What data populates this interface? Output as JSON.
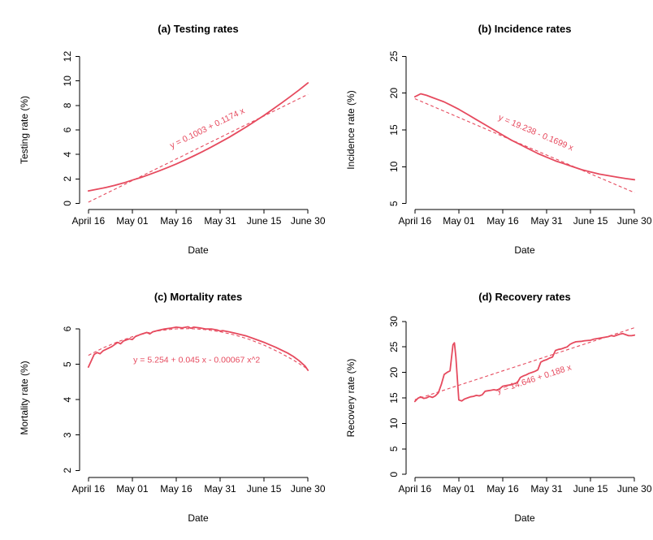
{
  "figure": {
    "background": "#ffffff",
    "accent": "#e64a5e",
    "text_color": "#000000"
  },
  "chart_data": [
    {
      "id": "a",
      "type": "line",
      "title": "(a) Testing rates",
      "xlabel": "Date",
      "ylabel": "Testing rate (%)",
      "xlim": [
        -3,
        78
      ],
      "ylim": [
        -0.5,
        12.5
      ],
      "yticks": [
        0,
        2,
        4,
        6,
        8,
        10,
        12
      ],
      "xticks": [
        {
          "pos": 0,
          "label": "April 16"
        },
        {
          "pos": 15,
          "label": "May 01"
        },
        {
          "pos": 30,
          "label": "May 16"
        },
        {
          "pos": 45,
          "label": "May 31"
        },
        {
          "pos": 60,
          "label": "June 15"
        },
        {
          "pos": 75,
          "label": "June 30"
        }
      ],
      "series": [
        {
          "name": "observed-testing-rate",
          "style": "solid",
          "points": [
            [
              0,
              1.02
            ],
            [
              3,
              1.16
            ],
            [
              6,
              1.3
            ],
            [
              9,
              1.47
            ],
            [
              12,
              1.67
            ],
            [
              15,
              1.9
            ],
            [
              18,
              2.12
            ],
            [
              21,
              2.37
            ],
            [
              24,
              2.64
            ],
            [
              27,
              2.92
            ],
            [
              30,
              3.22
            ],
            [
              33,
              3.54
            ],
            [
              36,
              3.88
            ],
            [
              39,
              4.23
            ],
            [
              42,
              4.6
            ],
            [
              45,
              4.99
            ],
            [
              48,
              5.39
            ],
            [
              51,
              5.82
            ],
            [
              54,
              6.26
            ],
            [
              57,
              6.72
            ],
            [
              60,
              7.19
            ],
            [
              63,
              7.69
            ],
            [
              66,
              8.2
            ],
            [
              69,
              8.73
            ],
            [
              72,
              9.27
            ],
            [
              75,
              9.84
            ]
          ]
        },
        {
          "name": "linear-fit",
          "style": "dashed",
          "points": [
            [
              0,
              0.1
            ],
            [
              75,
              8.905
            ]
          ]
        }
      ],
      "annotation": {
        "text": "y = 0.1003 + 0.1174 x",
        "x": 41,
        "y": 5.95,
        "angle": -26
      }
    },
    {
      "id": "b",
      "type": "line",
      "title": "(b) Incidence rates",
      "xlabel": "Date",
      "ylabel": "Incidence rate (%)",
      "xlim": [
        -3,
        78
      ],
      "ylim": [
        4.2,
        25.8
      ],
      "yticks": [
        5,
        10,
        15,
        20,
        25
      ],
      "xticks": [
        {
          "pos": 0,
          "label": "April 16"
        },
        {
          "pos": 15,
          "label": "May 01"
        },
        {
          "pos": 30,
          "label": "May 16"
        },
        {
          "pos": 45,
          "label": "May 31"
        },
        {
          "pos": 60,
          "label": "June 15"
        },
        {
          "pos": 75,
          "label": "June 30"
        }
      ],
      "series": [
        {
          "name": "observed-incidence-rate",
          "style": "solid",
          "points": [
            [
              0,
              19.5
            ],
            [
              2,
              19.9
            ],
            [
              4,
              19.7
            ],
            [
              6,
              19.4
            ],
            [
              8,
              19.1
            ],
            [
              10,
              18.8
            ],
            [
              12,
              18.4
            ],
            [
              15,
              17.8
            ],
            [
              18,
              17.1
            ],
            [
              21,
              16.4
            ],
            [
              24,
              15.7
            ],
            [
              27,
              15.0
            ],
            [
              30,
              14.3
            ],
            [
              33,
              13.6
            ],
            [
              36,
              13.0
            ],
            [
              39,
              12.4
            ],
            [
              42,
              11.8
            ],
            [
              45,
              11.3
            ],
            [
              48,
              10.8
            ],
            [
              51,
              10.4
            ],
            [
              54,
              10.0
            ],
            [
              57,
              9.6
            ],
            [
              60,
              9.3
            ],
            [
              63,
              9.0
            ],
            [
              66,
              8.8
            ],
            [
              69,
              8.6
            ],
            [
              72,
              8.4
            ],
            [
              75,
              8.25
            ]
          ]
        },
        {
          "name": "linear-fit",
          "style": "dashed",
          "points": [
            [
              0,
              19.238
            ],
            [
              75,
              6.496
            ]
          ]
        }
      ],
      "annotation": {
        "text": "y = 19.238 - 0.1699 x",
        "x": 41,
        "y": 14.3,
        "angle": 23
      }
    },
    {
      "id": "c",
      "type": "line",
      "title": "(c) Mortality rates",
      "xlabel": "Date",
      "ylabel": "Mortality rate (%)",
      "xlim": [
        -3,
        78
      ],
      "ylim": [
        1.8,
        6.3
      ],
      "yticks": [
        2,
        3,
        4,
        5,
        6
      ],
      "xticks": [
        {
          "pos": 0,
          "label": "April 16"
        },
        {
          "pos": 15,
          "label": "May 01"
        },
        {
          "pos": 30,
          "label": "May 16"
        },
        {
          "pos": 45,
          "label": "May 31"
        },
        {
          "pos": 60,
          "label": "June 15"
        },
        {
          "pos": 75,
          "label": "June 30"
        }
      ],
      "series": [
        {
          "name": "observed-mortality-rate",
          "style": "solid",
          "points": [
            [
              0,
              4.92
            ],
            [
              1,
              5.1
            ],
            [
              2,
              5.28
            ],
            [
              3,
              5.33
            ],
            [
              4,
              5.3
            ],
            [
              5,
              5.38
            ],
            [
              6,
              5.42
            ],
            [
              8,
              5.5
            ],
            [
              10,
              5.62
            ],
            [
              11,
              5.58
            ],
            [
              12,
              5.66
            ],
            [
              14,
              5.72
            ],
            [
              15,
              5.7
            ],
            [
              16,
              5.78
            ],
            [
              18,
              5.85
            ],
            [
              20,
              5.9
            ],
            [
              21,
              5.86
            ],
            [
              22,
              5.92
            ],
            [
              24,
              5.96
            ],
            [
              26,
              6.0
            ],
            [
              28,
              6.02
            ],
            [
              30,
              6.05
            ],
            [
              32,
              6.03
            ],
            [
              34,
              6.06
            ],
            [
              35,
              6.02
            ],
            [
              36,
              6.05
            ],
            [
              38,
              6.03
            ],
            [
              40,
              6.0
            ],
            [
              42,
              6.0
            ],
            [
              44,
              5.97
            ],
            [
              45,
              5.94
            ],
            [
              46,
              5.95
            ],
            [
              48,
              5.92
            ],
            [
              50,
              5.88
            ],
            [
              52,
              5.84
            ],
            [
              54,
              5.8
            ],
            [
              56,
              5.74
            ],
            [
              58,
              5.68
            ],
            [
              60,
              5.62
            ],
            [
              62,
              5.55
            ],
            [
              64,
              5.48
            ],
            [
              66,
              5.4
            ],
            [
              68,
              5.32
            ],
            [
              70,
              5.22
            ],
            [
              72,
              5.1
            ],
            [
              74,
              4.95
            ],
            [
              75,
              4.83
            ]
          ]
        },
        {
          "name": "quadratic-fit",
          "style": "dashed",
          "points": [
            [
              0,
              5.254
            ],
            [
              5,
              5.462
            ],
            [
              10,
              5.637
            ],
            [
              15,
              5.778
            ],
            [
              20,
              5.886
            ],
            [
              25,
              5.96
            ],
            [
              30,
              6.001
            ],
            [
              35,
              6.008
            ],
            [
              40,
              5.982
            ],
            [
              45,
              5.922
            ],
            [
              50,
              5.829
            ],
            [
              55,
              5.702
            ],
            [
              60,
              5.542
            ],
            [
              65,
              5.348
            ],
            [
              70,
              5.121
            ],
            [
              75,
              4.86
            ]
          ]
        }
      ],
      "annotation": {
        "text": "y = 5.254 + 0.045 x - 0.00067 x^2",
        "x": 37,
        "y": 5.05,
        "angle": 0
      }
    },
    {
      "id": "d",
      "type": "line",
      "title": "(d) Recovery rates",
      "xlabel": "Date",
      "ylabel": "Recovery rate (%)",
      "xlim": [
        -3,
        78
      ],
      "ylim": [
        -0.6,
        30.6
      ],
      "yticks": [
        0,
        5,
        10,
        15,
        20,
        25,
        30
      ],
      "xticks": [
        {
          "pos": 0,
          "label": "April 16"
        },
        {
          "pos": 15,
          "label": "May 01"
        },
        {
          "pos": 30,
          "label": "May 16"
        },
        {
          "pos": 45,
          "label": "May 31"
        },
        {
          "pos": 60,
          "label": "June 15"
        },
        {
          "pos": 75,
          "label": "June 30"
        }
      ],
      "series": [
        {
          "name": "observed-recovery-rate",
          "style": "solid",
          "points": [
            [
              0,
              14.3
            ],
            [
              1,
              14.9
            ],
            [
              2,
              15.2
            ],
            [
              3,
              14.9
            ],
            [
              4,
              15.0
            ],
            [
              5,
              15.3
            ],
            [
              6,
              15.1
            ],
            [
              7,
              15.4
            ],
            [
              8,
              16.0
            ],
            [
              9,
              17.6
            ],
            [
              10,
              19.6
            ],
            [
              11,
              20.0
            ],
            [
              12,
              20.3
            ],
            [
              13,
              25.4
            ],
            [
              13.5,
              25.8
            ],
            [
              14,
              23.0
            ],
            [
              15,
              14.6
            ],
            [
              16,
              14.4
            ],
            [
              17,
              14.8
            ],
            [
              18,
              15.0
            ],
            [
              19,
              15.2
            ],
            [
              20,
              15.3
            ],
            [
              21,
              15.5
            ],
            [
              22,
              15.4
            ],
            [
              23,
              15.6
            ],
            [
              24,
              16.3
            ],
            [
              25,
              16.4
            ],
            [
              26,
              16.5
            ],
            [
              27,
              16.6
            ],
            [
              28,
              16.5
            ],
            [
              29,
              16.8
            ],
            [
              30,
              17.3
            ],
            [
              31,
              17.4
            ],
            [
              32,
              17.5
            ],
            [
              33,
              17.6
            ],
            [
              34,
              17.8
            ],
            [
              35,
              18.0
            ],
            [
              36,
              19.0
            ],
            [
              37,
              19.3
            ],
            [
              38,
              19.5
            ],
            [
              39,
              19.8
            ],
            [
              40,
              20.0
            ],
            [
              41,
              20.2
            ],
            [
              42,
              20.5
            ],
            [
              43,
              22.0
            ],
            [
              44,
              22.3
            ],
            [
              45,
              22.5
            ],
            [
              46,
              22.8
            ],
            [
              47,
              23.0
            ],
            [
              48,
              24.3
            ],
            [
              49,
              24.5
            ],
            [
              50,
              24.6
            ],
            [
              51,
              24.8
            ],
            [
              52,
              25.0
            ],
            [
              53,
              25.5
            ],
            [
              54,
              25.8
            ],
            [
              55,
              26.0
            ],
            [
              57,
              26.1
            ],
            [
              58,
              26.2
            ],
            [
              60,
              26.3
            ],
            [
              61,
              26.5
            ],
            [
              62,
              26.6
            ],
            [
              64,
              26.8
            ],
            [
              66,
              27.0
            ],
            [
              67,
              27.2
            ],
            [
              68,
              27.1
            ],
            [
              70,
              27.5
            ],
            [
              71,
              27.6
            ],
            [
              72,
              27.4
            ],
            [
              73,
              27.2
            ],
            [
              74,
              27.2
            ],
            [
              75,
              27.3
            ]
          ]
        },
        {
          "name": "linear-fit",
          "style": "dashed",
          "points": [
            [
              0,
              14.646
            ],
            [
              75,
              28.746
            ]
          ]
        }
      ],
      "annotation": {
        "text": "y = 14.646 + 0.188 x",
        "x": 41,
        "y": 18.2,
        "angle": -18
      }
    }
  ]
}
